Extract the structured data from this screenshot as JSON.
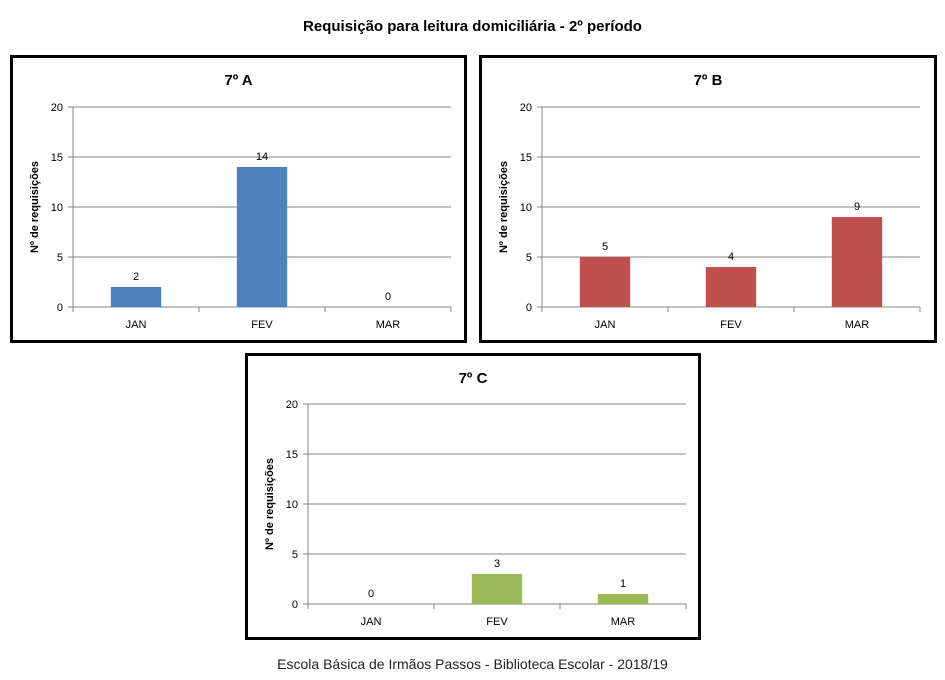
{
  "title": "Requisição para leitura domiciliária - 2º período",
  "footer": "Escola Básica de Irmãos Passos - Biblioteca Escolar  - 2018/19",
  "chart_data": [
    {
      "type": "bar",
      "title": "7º A",
      "ylabel": "Nº de requisições",
      "categories": [
        "JAN",
        "FEV",
        "MAR"
      ],
      "values": [
        2,
        14,
        0
      ],
      "ylim": [
        0,
        20
      ],
      "yticks": [
        0,
        5,
        10,
        15,
        20
      ],
      "grid": true,
      "color": "#4f81bd"
    },
    {
      "type": "bar",
      "title": "7º B",
      "ylabel": "Nº de requisições",
      "categories": [
        "JAN",
        "FEV",
        "MAR"
      ],
      "values": [
        5,
        4,
        9
      ],
      "ylim": [
        0,
        20
      ],
      "yticks": [
        0,
        5,
        10,
        15,
        20
      ],
      "grid": true,
      "color": "#c0504d"
    },
    {
      "type": "bar",
      "title": "7º C",
      "ylabel": "Nº de requisições",
      "categories": [
        "JAN",
        "FEV",
        "MAR"
      ],
      "values": [
        0,
        3,
        1
      ],
      "ylim": [
        0,
        20
      ],
      "yticks": [
        0,
        5,
        10,
        15,
        20
      ],
      "grid": true,
      "color": "#9bbb59"
    }
  ]
}
